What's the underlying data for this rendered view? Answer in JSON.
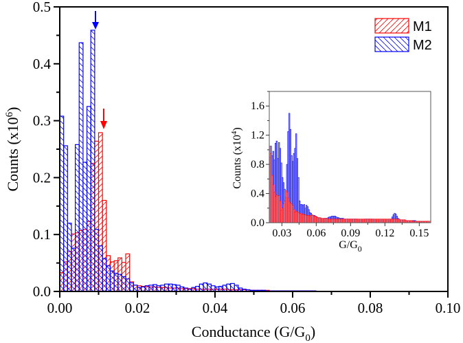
{
  "chart_data": [
    {
      "type": "bar",
      "role": "main",
      "title": "",
      "xlabel": "Conductance (G/G",
      "xlabel_sub": "0",
      "xlabel_end": ")",
      "ylabel": "Counts (x10",
      "ylabel_sup": "6",
      "ylabel_end": ")",
      "xlim": [
        0.0,
        0.1
      ],
      "ylim": [
        0.0,
        0.5
      ],
      "xticks": [
        0.0,
        0.02,
        0.04,
        0.06,
        0.08,
        0.1
      ],
      "xtick_labels": [
        "0.00",
        "0.02",
        "0.04",
        "0.06",
        "0.08",
        "0.10"
      ],
      "yticks": [
        0.0,
        0.1,
        0.2,
        0.3,
        0.4,
        0.5
      ],
      "ytick_labels": [
        "0.0",
        "0.1",
        "0.2",
        "0.3",
        "0.4",
        "0.5"
      ],
      "bin_width": 0.001,
      "grid": false,
      "legend_position": "top-right",
      "series": [
        {
          "name": "M1",
          "color": "#ff0000",
          "hatch": "forward-diagonal",
          "bin_starts": [
            0.0,
            0.001,
            0.002,
            0.003,
            0.004,
            0.005,
            0.006,
            0.007,
            0.008,
            0.009,
            0.01,
            0.011,
            0.012,
            0.013,
            0.014,
            0.015,
            0.016,
            0.017,
            0.018,
            0.019,
            0.02,
            0.021,
            0.022,
            0.023,
            0.024,
            0.025,
            0.026,
            0.027,
            0.028,
            0.029,
            0.03,
            0.031,
            0.032,
            0.033,
            0.034,
            0.035,
            0.036,
            0.037,
            0.038,
            0.039,
            0.04,
            0.041,
            0.042,
            0.043,
            0.044,
            0.045,
            0.046,
            0.047,
            0.048,
            0.049,
            0.05,
            0.051,
            0.052,
            0.053,
            0.054,
            0.055,
            0.056,
            0.057,
            0.058,
            0.059,
            0.06,
            0.061,
            0.062,
            0.063,
            0.064,
            0.065
          ],
          "values": [
            0.033,
            0.052,
            0.07,
            0.101,
            0.103,
            0.107,
            0.109,
            0.123,
            0.225,
            0.264,
            0.279,
            0.16,
            0.063,
            0.052,
            0.054,
            0.059,
            0.051,
            0.066,
            0.017,
            0.011,
            0.01,
            0.009,
            0.009,
            0.008,
            0.008,
            0.007,
            0.007,
            0.007,
            0.006,
            0.006,
            0.006,
            0.005,
            0.005,
            0.005,
            0.005,
            0.004,
            0.004,
            0.004,
            0.004,
            0.004,
            0.004,
            0.004,
            0.004,
            0.003,
            0.003,
            0.003,
            0.003,
            0.003,
            0.003,
            0.002,
            0.002,
            0.002,
            0.002,
            0.002,
            0.001,
            0.001,
            0.001,
            0.001,
            0.001,
            0.001,
            0.001,
            0.001,
            0.001,
            0.001,
            0.001,
            0.001
          ],
          "marker_arrow_at": 0.0105
        },
        {
          "name": "M2",
          "color": "#0000ff",
          "hatch": "backward-diagonal",
          "bin_starts": [
            0.0,
            0.001,
            0.002,
            0.003,
            0.004,
            0.005,
            0.006,
            0.007,
            0.008,
            0.009,
            0.01,
            0.011,
            0.012,
            0.013,
            0.014,
            0.015,
            0.016,
            0.017,
            0.018,
            0.019,
            0.02,
            0.021,
            0.022,
            0.023,
            0.024,
            0.025,
            0.026,
            0.027,
            0.028,
            0.029,
            0.03,
            0.031,
            0.032,
            0.033,
            0.034,
            0.035,
            0.036,
            0.037,
            0.038,
            0.039,
            0.04,
            0.041,
            0.042,
            0.043,
            0.044,
            0.045,
            0.046,
            0.047,
            0.048,
            0.049,
            0.05,
            0.051,
            0.052,
            0.053,
            0.054,
            0.055,
            0.056,
            0.057,
            0.058,
            0.059,
            0.06,
            0.061,
            0.062,
            0.063,
            0.064,
            0.065
          ],
          "values": [
            0.308,
            0.256,
            0.12,
            0.076,
            0.258,
            0.437,
            0.227,
            0.325,
            0.459,
            0.109,
            0.08,
            0.058,
            0.045,
            0.036,
            0.032,
            0.03,
            0.026,
            0.022,
            0.015,
            0.011,
            0.007,
            0.008,
            0.01,
            0.011,
            0.012,
            0.01,
            0.011,
            0.013,
            0.013,
            0.012,
            0.011,
            0.008,
            0.006,
            0.004,
            0.007,
            0.009,
            0.013,
            0.015,
            0.013,
            0.01,
            0.008,
            0.009,
            0.011,
            0.013,
            0.014,
            0.011,
            0.006,
            0.004,
            0.003,
            0.002,
            0.002,
            0.002,
            0.002,
            0.001,
            0.001,
            0.001,
            0.001,
            0.001,
            0.001,
            0.001,
            0.001,
            0.001,
            0.001,
            0.001,
            0.001,
            0.001
          ],
          "marker_arrow_at": 0.0085
        }
      ]
    },
    {
      "type": "bar",
      "role": "inset",
      "xlabel": "G/G",
      "xlabel_sub": "0",
      "ylabel": "Counts (x10",
      "ylabel_sup": "4",
      "ylabel_end": ")",
      "xlim": [
        0.019,
        0.16
      ],
      "ylim": [
        0.0,
        1.8
      ],
      "xticks": [
        0.03,
        0.06,
        0.09,
        0.12,
        0.15
      ],
      "xtick_labels": [
        "0.03",
        "0.06",
        "0.09",
        "0.12",
        "0.15"
      ],
      "yticks": [
        0.0,
        0.4,
        0.8,
        1.2,
        1.6
      ],
      "ytick_labels": [
        "0.0",
        "0.4",
        "0.8",
        "1.2",
        "1.6"
      ],
      "bin_width": 0.001,
      "grid": false,
      "series": [
        {
          "name": "M1",
          "color": "#ff0000",
          "x_start": 0.019,
          "values": [
            1.05,
            0.95,
            0.65,
            0.52,
            0.42,
            0.36,
            0.38,
            0.37,
            0.37,
            0.3,
            0.17,
            0.2,
            0.26,
            0.3,
            0.44,
            0.42,
            0.34,
            0.29,
            0.27,
            0.26,
            0.24,
            0.18,
            0.15,
            0.16,
            0.15,
            0.14,
            0.13,
            0.13,
            0.12,
            0.12,
            0.11,
            0.11,
            0.1,
            0.1,
            0.1,
            0.09,
            0.1,
            0.11,
            0.1,
            0.09,
            0.09,
            0.08,
            0.07,
            0.07,
            0.07,
            0.06,
            0.06,
            0.06,
            0.06,
            0.06,
            0.06,
            0.05,
            0.05,
            0.05,
            0.05,
            0.05,
            0.05,
            0.05,
            0.05,
            0.05,
            0.05,
            0.05,
            0.05,
            0.05,
            0.05,
            0.05,
            0.05,
            0.05,
            0.05,
            0.05,
            0.05,
            0.05,
            0.05,
            0.05,
            0.05,
            0.05,
            0.05,
            0.05,
            0.05,
            0.05,
            0.05,
            0.05,
            0.05,
            0.05,
            0.05,
            0.05,
            0.05,
            0.05,
            0.05,
            0.05,
            0.05,
            0.05,
            0.05,
            0.05,
            0.05,
            0.05,
            0.05,
            0.05,
            0.05,
            0.05,
            0.05,
            0.05,
            0.05,
            0.05,
            0.05,
            0.05,
            0.05,
            0.05,
            0.05,
            0.05,
            0.05,
            0.05,
            0.05,
            0.05,
            0.04,
            0.04,
            0.04,
            0.04,
            0.04,
            0.03,
            0.03,
            0.03,
            0.03,
            0.03,
            0.03,
            0.02,
            0.02,
            0.02,
            0.02,
            0.02,
            0.02,
            0.02,
            0.02,
            0.02,
            0.02,
            0.02,
            0.02,
            0.02,
            0.02,
            0.02,
            0.02
          ]
        },
        {
          "name": "M2",
          "color": "#0000ff",
          "x_start": 0.019,
          "values": [
            0.9,
            1.05,
            0.92,
            0.98,
            0.86,
            1.09,
            1.12,
            0.88,
            1.1,
            1.02,
            0.82,
            0.62,
            0.55,
            0.46,
            0.35,
            0.8,
            1.25,
            1.5,
            1.28,
            0.92,
            0.84,
            0.95,
            1.02,
            1.22,
            0.88,
            0.62,
            0.3,
            0.25,
            0.25,
            0.24,
            0.25,
            0.2,
            0.24,
            0.22,
            0.18,
            0.14,
            0.13,
            0.11,
            0.1,
            0.1,
            0.09,
            0.08,
            0.07,
            0.06,
            0.06,
            0.05,
            0.05,
            0.05,
            0.06,
            0.06,
            0.06,
            0.07,
            0.08,
            0.08,
            0.09,
            0.09,
            0.09,
            0.09,
            0.08,
            0.07,
            0.07,
            0.06,
            0.06,
            0.06,
            0.06,
            0.05,
            0.05,
            0.05,
            0.05,
            0.05,
            0.05,
            0.05,
            0.05,
            0.05,
            0.05,
            0.05,
            0.05,
            0.04,
            0.04,
            0.04,
            0.04,
            0.04,
            0.04,
            0.05,
            0.05,
            0.05,
            0.05,
            0.05,
            0.05,
            0.05,
            0.05,
            0.04,
            0.04,
            0.04,
            0.04,
            0.04,
            0.04,
            0.04,
            0.04,
            0.04,
            0.04,
            0.04,
            0.04,
            0.04,
            0.04,
            0.04,
            0.05,
            0.08,
            0.11,
            0.13,
            0.12,
            0.09,
            0.06,
            0.05,
            0.04,
            0.04,
            0.04,
            0.04,
            0.04,
            0.03,
            0.03,
            0.03,
            0.03,
            0.03,
            0.03,
            0.03,
            0.03,
            0.03,
            0.02,
            0.02,
            0.02,
            0.02,
            0.02,
            0.02,
            0.02,
            0.02,
            0.02,
            0.02,
            0.02
          ]
        }
      ]
    }
  ],
  "legend": {
    "items": [
      {
        "label": "M1",
        "color": "#ff0000",
        "hatch": "forward-diagonal"
      },
      {
        "label": "M2",
        "color": "#0000ff",
        "hatch": "backward-diagonal"
      }
    ]
  }
}
